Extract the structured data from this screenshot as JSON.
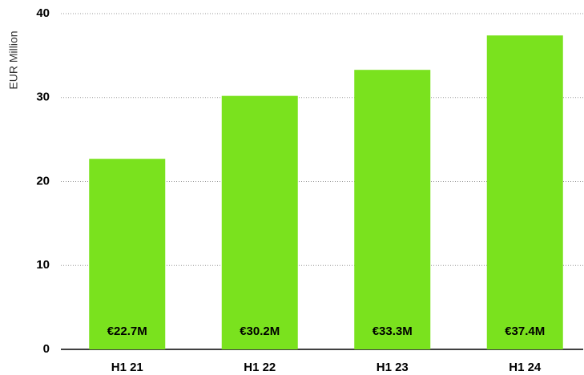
{
  "chart_data": {
    "type": "bar",
    "y_label": "EUR Million",
    "categories": [
      "H1 21",
      "H1 22",
      "H1 23",
      "H1 24"
    ],
    "values": [
      22.7,
      30.2,
      33.3,
      37.4
    ],
    "value_labels": [
      "€22.7M",
      "€30.2M",
      "€33.3M",
      "€37.4M"
    ],
    "color": "#7ae21e",
    "ylim": [
      0,
      40
    ],
    "yticks": [
      0,
      10,
      20,
      30,
      40
    ],
    "grid": true
  }
}
